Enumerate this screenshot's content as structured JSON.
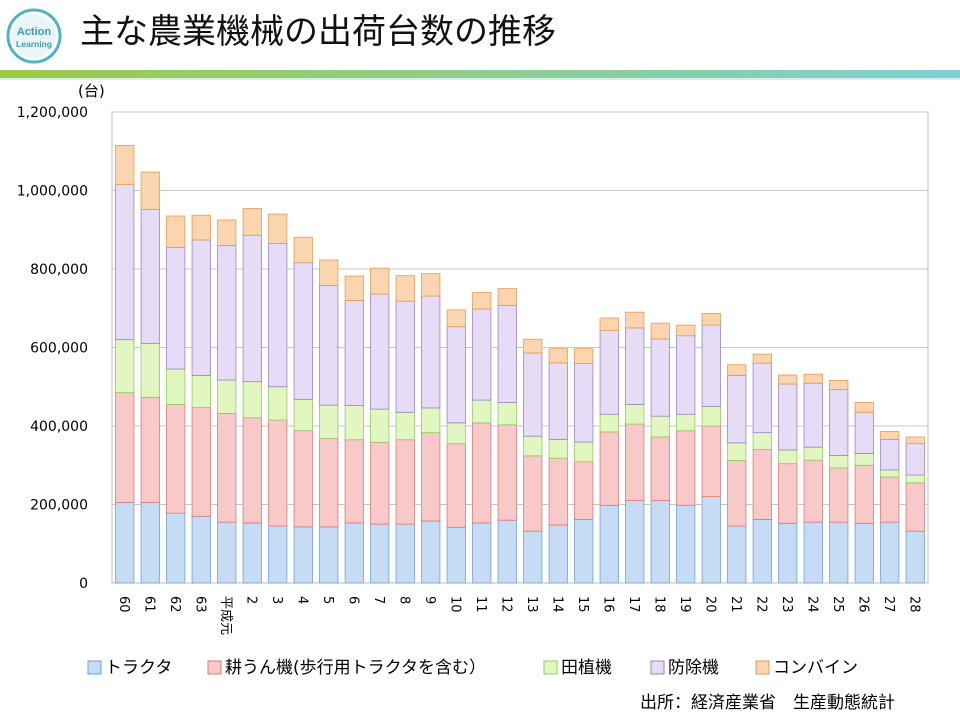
{
  "logo": {
    "line1": "Action",
    "line2": "Learning"
  },
  "title": "主な農業機械の出荷台数の推移",
  "source": "出所：経済産業省　生産動態統計",
  "colors": {
    "tractor": "#c6dcf5",
    "tractor_stroke": "#6f9fd6",
    "tiller": "#f8c9c9",
    "tiller_stroke": "#e07777",
    "rice": "#e2f6c2",
    "rice_stroke": "#92cc5c",
    "sprayer": "#e6dcf6",
    "sprayer_stroke": "#9a83c8",
    "combine": "#fbd5b0",
    "combine_stroke": "#e59b55",
    "band_green": "#9ccc46",
    "band_teal": "#7fcfd4"
  },
  "chart_data": {
    "type": "bar",
    "stacked": true,
    "title": "主な農業機械の出荷台数の推移",
    "ylabel": "(台)",
    "xlabel": "",
    "ylim": [
      0,
      1200000
    ],
    "yticks": [
      0,
      200000,
      400000,
      600000,
      800000,
      1000000,
      1200000
    ],
    "ytick_labels": [
      "0",
      "200,000",
      "400,000",
      "600,000",
      "800,000",
      "1,000,000",
      "1,200,000"
    ],
    "grid": true,
    "legend_position": "bottom",
    "categories": [
      "60",
      "61",
      "62",
      "63",
      "平成元",
      "2",
      "3",
      "4",
      "5",
      "6",
      "7",
      "8",
      "9",
      "10",
      "11",
      "12",
      "13",
      "14",
      "15",
      "16",
      "17",
      "18",
      "19",
      "20",
      "21",
      "22",
      "23",
      "24",
      "25",
      "26",
      "27",
      "28"
    ],
    "series": [
      {
        "name": "トラクタ",
        "color_key": "tractor",
        "values": [
          205000,
          205000,
          178000,
          170000,
          155000,
          153000,
          145000,
          143000,
          143000,
          153000,
          150000,
          150000,
          158000,
          142000,
          153000,
          160000,
          132000,
          148000,
          162000,
          198000,
          210000,
          210000,
          198000,
          220000,
          145000,
          162000,
          152000,
          155000,
          155000,
          152000,
          155000,
          132000
        ]
      },
      {
        "name": "耕うん機(歩行用トラクタを含む）",
        "color_key": "tiller",
        "values": [
          280000,
          268000,
          277000,
          277000,
          277000,
          268000,
          270000,
          245000,
          225000,
          212000,
          208000,
          215000,
          225000,
          213000,
          255000,
          243000,
          192000,
          170000,
          147000,
          187000,
          195000,
          162000,
          190000,
          180000,
          167000,
          178000,
          152000,
          158000,
          138000,
          148000,
          115000,
          123000
        ]
      },
      {
        "name": "田植機",
        "color_key": "rice",
        "values": [
          135000,
          137000,
          90000,
          82000,
          85000,
          92000,
          85000,
          80000,
          85000,
          87000,
          85000,
          70000,
          63000,
          53000,
          58000,
          57000,
          50000,
          48000,
          50000,
          45000,
          50000,
          53000,
          42000,
          50000,
          45000,
          43000,
          35000,
          33000,
          32000,
          30000,
          18000,
          20000
        ]
      },
      {
        "name": "防除機",
        "color_key": "sprayer",
        "values": [
          395000,
          342000,
          310000,
          345000,
          343000,
          373000,
          365000,
          348000,
          305000,
          268000,
          293000,
          283000,
          285000,
          245000,
          232000,
          247000,
          212000,
          195000,
          200000,
          213000,
          195000,
          197000,
          200000,
          207000,
          172000,
          177000,
          168000,
          163000,
          168000,
          105000,
          78000,
          80000
        ]
      },
      {
        "name": "コンバイン",
        "color_key": "combine",
        "values": [
          100000,
          95000,
          80000,
          63000,
          65000,
          68000,
          75000,
          65000,
          65000,
          62000,
          66000,
          65000,
          57000,
          43000,
          42000,
          43000,
          35000,
          36000,
          38000,
          32000,
          40000,
          40000,
          27000,
          30000,
          27000,
          23000,
          23000,
          23000,
          23000,
          25000,
          20000,
          17000
        ]
      }
    ]
  }
}
